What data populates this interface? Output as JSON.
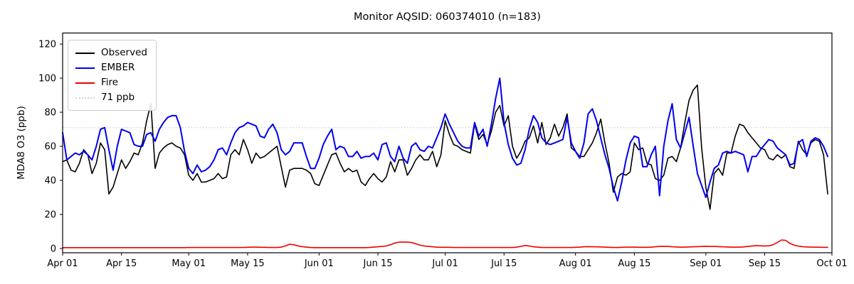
{
  "figure": {
    "title": "Monitor AQSID: 060374010 (n=183)",
    "ylabel": "MDA8 O3 (ppb)",
    "background": "#ffffff"
  },
  "legend": {
    "position": "upper left",
    "items": [
      {
        "label": "Observed",
        "color": "#000000",
        "style": "solid"
      },
      {
        "label": "EMBER",
        "color": "#0000ee",
        "style": "solid"
      },
      {
        "label": "Fire",
        "color": "#ee0000",
        "style": "solid"
      },
      {
        "label": "71 ppb",
        "color": "#d3d3d3",
        "style": "dotted"
      }
    ]
  },
  "chart_data": {
    "type": "line",
    "title": "Monitor AQSID: 060374010 (n=183)",
    "xlabel": "",
    "ylabel": "MDA8 O3 (ppb)",
    "n_points": 183,
    "x_unit": "days since Apr 01",
    "x_start_date": "Apr 01",
    "x_end_date": "Oct 01",
    "xlim": [
      0,
      183
    ],
    "ylim": [
      -2.5,
      126.5
    ],
    "yticks": [
      0,
      20,
      40,
      60,
      80,
      100,
      120
    ],
    "xtick_positions": [
      0,
      14,
      30,
      44,
      61,
      75,
      91,
      105,
      122,
      136,
      153,
      167,
      183
    ],
    "xtick_labels": [
      "Apr 01",
      "Apr 15",
      "May 01",
      "May 15",
      "Jun 01",
      "Jun 15",
      "Jul 01",
      "Jul 15",
      "Aug 01",
      "Aug 15",
      "Sep 01",
      "Sep 15",
      "Oct 01"
    ],
    "grid": false,
    "reference_line": {
      "value": 71,
      "label": "71 ppb",
      "color": "#d3d3d3",
      "style": "dotted"
    },
    "series": [
      {
        "name": "Observed",
        "color": "#000000",
        "width": 1.6,
        "values": [
          51,
          52,
          46,
          45,
          50,
          58,
          55,
          44,
          50,
          62,
          58,
          32,
          36,
          44,
          52,
          47,
          51,
          56,
          55,
          62,
          75,
          85,
          47,
          56,
          59,
          61,
          62,
          60,
          59,
          55,
          43,
          40,
          44,
          39,
          39,
          40,
          41,
          44,
          41,
          42,
          55,
          58,
          55,
          64,
          58,
          50,
          56,
          53,
          54,
          56,
          58,
          60,
          48,
          36,
          46,
          47,
          47,
          47,
          46,
          44,
          38,
          37,
          43,
          49,
          55,
          56,
          50,
          45,
          47,
          45,
          46,
          39,
          37,
          41,
          44,
          41,
          39,
          42,
          51,
          45,
          52,
          52,
          43,
          47,
          52,
          55,
          52,
          52,
          57,
          48,
          55,
          75,
          67,
          61,
          60,
          58,
          57,
          56,
          73,
          64,
          67,
          61,
          69,
          80,
          84,
          72,
          78,
          60,
          53,
          57,
          63,
          65,
          72,
          62,
          74,
          61,
          65,
          73,
          66,
          71,
          79,
          59,
          57,
          54,
          54,
          58,
          62,
          68,
          76,
          62,
          50,
          33,
          42,
          44,
          43,
          45,
          62,
          58,
          59,
          50,
          49,
          41,
          40,
          43,
          53,
          54,
          51,
          59,
          74,
          87,
          93,
          96,
          59,
          36,
          23,
          44,
          47,
          43,
          56,
          56,
          66,
          73,
          72,
          68,
          65,
          62,
          59,
          58,
          53,
          52,
          55,
          53,
          55,
          48,
          47,
          63,
          58,
          55,
          62,
          64,
          63,
          55,
          32
        ]
      },
      {
        "name": "EMBER",
        "color": "#0000ee",
        "width": 2,
        "values": [
          68,
          52,
          54,
          56,
          55,
          57,
          55,
          52,
          60,
          70,
          71,
          58,
          46,
          60,
          70,
          69,
          68,
          61,
          60,
          60,
          67,
          68,
          63,
          70,
          74,
          77,
          78,
          78,
          71,
          57,
          47,
          44,
          49,
          45,
          46,
          48,
          52,
          58,
          59,
          55,
          62,
          68,
          71,
          72,
          74,
          73,
          72,
          66,
          65,
          70,
          73,
          68,
          58,
          55,
          57,
          62,
          62,
          62,
          54,
          47,
          47,
          53,
          61,
          66,
          70,
          58,
          60,
          59,
          54,
          54,
          57,
          53,
          54,
          54,
          56,
          52,
          61,
          62,
          54,
          51,
          60,
          53,
          50,
          60,
          62,
          58,
          57,
          60,
          59,
          65,
          71,
          79,
          73,
          68,
          63,
          60,
          59,
          59,
          74,
          66,
          70,
          60,
          73,
          88,
          100,
          74,
          61,
          53,
          49,
          50,
          58,
          70,
          78,
          74,
          65,
          62,
          61,
          62,
          63,
          64,
          77,
          62,
          57,
          53,
          62,
          79,
          82,
          75,
          65,
          55,
          47,
          36,
          28,
          39,
          52,
          62,
          66,
          65,
          48,
          48,
          55,
          60,
          31,
          60,
          75,
          85,
          64,
          59,
          68,
          77,
          60,
          44,
          37,
          30,
          39,
          47,
          49,
          56,
          57,
          56,
          57,
          56,
          55,
          45,
          54,
          54,
          58,
          61,
          64,
          63,
          59,
          57,
          55,
          49,
          50,
          62,
          64,
          54,
          63,
          65,
          64,
          60,
          54
        ]
      },
      {
        "name": "Fire",
        "color": "#ee0000",
        "width": 1.6,
        "values": [
          0.5,
          0.5,
          0.5,
          0.5,
          0.5,
          0.5,
          0.5,
          0.5,
          0.5,
          0.5,
          0.5,
          0.5,
          0.5,
          0.5,
          0.5,
          0.5,
          0.5,
          0.5,
          0.5,
          0.5,
          0.5,
          0.5,
          0.5,
          0.5,
          0.5,
          0.5,
          0.5,
          0.5,
          0.5,
          0.5,
          0.6,
          0.6,
          0.6,
          0.6,
          0.6,
          0.6,
          0.6,
          0.6,
          0.6,
          0.6,
          0.6,
          0.6,
          0.6,
          0.6,
          0.7,
          0.8,
          0.8,
          0.7,
          0.7,
          0.6,
          0.6,
          0.6,
          0.8,
          1.5,
          2.5,
          2.2,
          1.5,
          1.1,
          0.8,
          0.6,
          0.5,
          0.5,
          0.5,
          0.5,
          0.5,
          0.5,
          0.5,
          0.5,
          0.5,
          0.5,
          0.5,
          0.5,
          0.5,
          0.6,
          0.8,
          1.0,
          1.2,
          1.5,
          2.2,
          3.2,
          3.7,
          3.8,
          3.8,
          3.5,
          2.8,
          2.0,
          1.5,
          1.2,
          1.0,
          0.8,
          0.7,
          0.7,
          0.7,
          0.6,
          0.6,
          0.6,
          0.6,
          0.6,
          0.6,
          0.6,
          0.6,
          0.6,
          0.6,
          0.6,
          0.6,
          0.6,
          0.6,
          0.6,
          0.8,
          1.2,
          1.8,
          1.5,
          1.0,
          0.8,
          0.6,
          0.6,
          0.6,
          0.6,
          0.6,
          0.6,
          0.6,
          0.6,
          0.7,
          0.8,
          1.0,
          1.1,
          1.0,
          1.0,
          0.9,
          0.8,
          0.7,
          0.6,
          0.6,
          0.7,
          0.8,
          0.8,
          0.8,
          0.7,
          0.7,
          0.7,
          0.8,
          1.0,
          1.2,
          1.3,
          1.2,
          1.0,
          0.9,
          0.8,
          0.8,
          0.9,
          1.0,
          1.1,
          1.2,
          1.3,
          1.2,
          1.2,
          1.1,
          1.0,
          0.9,
          0.8,
          0.8,
          0.8,
          0.9,
          1.2,
          1.5,
          1.7,
          1.6,
          1.5,
          1.6,
          2.2,
          3.5,
          5.0,
          4.8,
          3.0,
          2.0,
          1.4,
          1.1,
          0.9,
          0.8,
          0.8,
          0.7,
          0.7,
          0.7
        ]
      }
    ]
  }
}
